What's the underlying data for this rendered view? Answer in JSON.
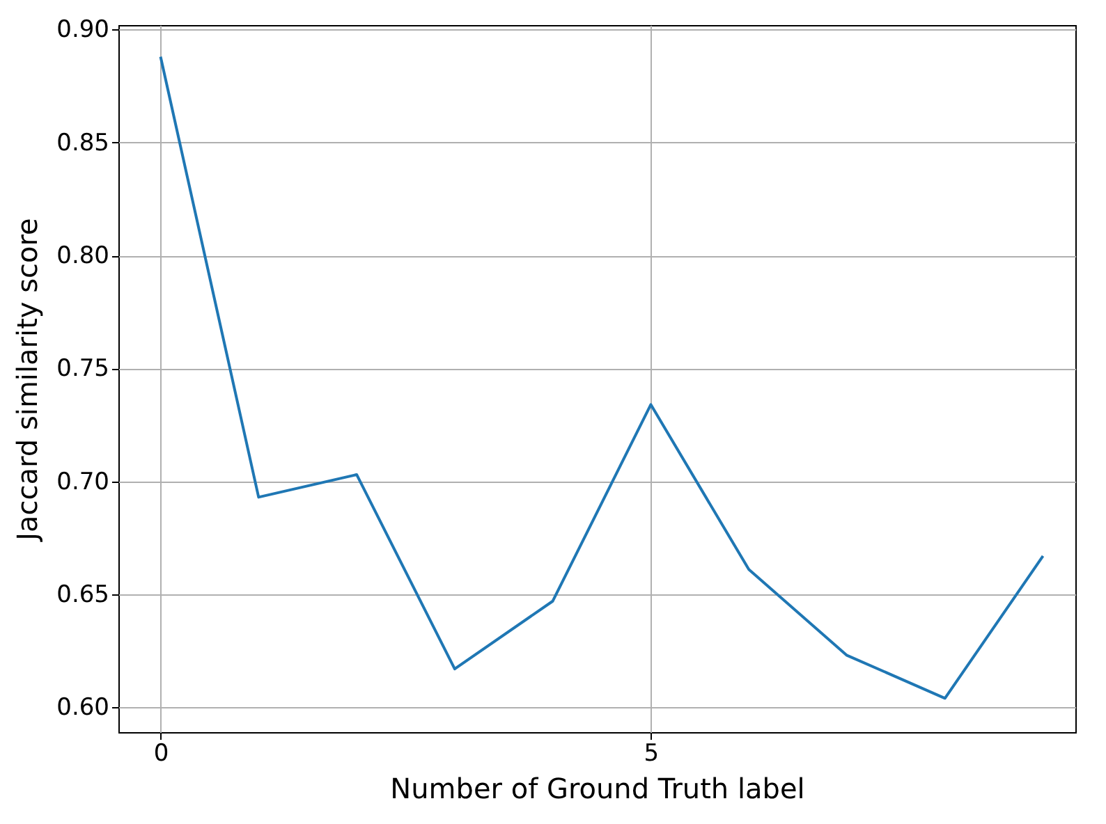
{
  "chart_data": {
    "type": "line",
    "xlabel": "Number of Ground Truth label",
    "ylabel": "Jaccard similarity score",
    "x": [
      0,
      1,
      2,
      3,
      4,
      5,
      6,
      7,
      8,
      9
    ],
    "series": [
      {
        "color": "#1f77b4",
        "values": [
          0.888,
          0.693,
          0.703,
          0.617,
          0.647,
          0.734,
          0.661,
          0.623,
          0.604,
          0.667
        ]
      }
    ],
    "xlim": [
      -0.43,
      9.33
    ],
    "xticks": [
      0,
      5
    ],
    "ylim": [
      0.589,
      0.902
    ],
    "yticks": [
      {
        "value": 0.6,
        "label": "0.60"
      },
      0.65,
      {
        "value": 0.7,
        "label": "0.70"
      },
      0.75,
      {
        "value": 0.8,
        "label": "0.80"
      },
      0.85,
      {
        "value": 0.9,
        "label": "0.90"
      }
    ],
    "grid": true,
    "marker": "none",
    "line_style": "solid"
  }
}
